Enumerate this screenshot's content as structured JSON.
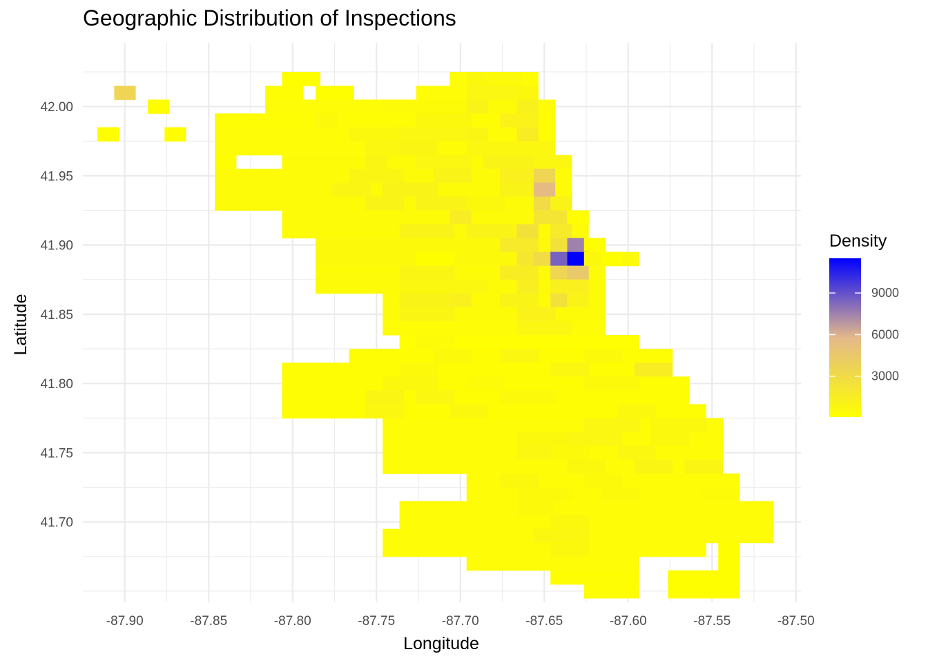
{
  "chart_data": {
    "type": "heatmap",
    "title": "Geographic Distribution of Inspections",
    "xlabel": "Longitude",
    "ylabel": "Latitude",
    "xlim": [
      -87.925,
      -87.497
    ],
    "ylim": [
      41.642,
      42.046
    ],
    "x_ticks": [
      -87.9,
      -87.85,
      -87.8,
      -87.75,
      -87.7,
      -87.65,
      -87.6,
      -87.55,
      -87.5
    ],
    "x_tick_labels": [
      "-87.90",
      "-87.85",
      "-87.80",
      "-87.75",
      "-87.70",
      "-87.65",
      "-87.60",
      "-87.55",
      "-87.50"
    ],
    "y_ticks": [
      41.7,
      41.75,
      41.8,
      41.85,
      41.9,
      41.95,
      42.0
    ],
    "y_tick_labels": [
      "41.70",
      "41.75",
      "41.80",
      "41.85",
      "41.90",
      "41.95",
      "42.00"
    ],
    "grid": true,
    "bin_width_lon": 0.0126,
    "bin_height_lat": 0.01,
    "legend": {
      "title": "Density",
      "placement": "right",
      "breaks": [
        3000,
        6000,
        9000
      ],
      "break_labels": [
        "3000",
        "6000",
        "9000"
      ],
      "min": 50,
      "max": 11500,
      "colors": [
        "#ffff00",
        "#e3b98a",
        "#0000ff"
      ]
    },
    "rows": [
      {
        "lat": 42.02,
        "spans": [
          [
            -87.8,
            -87.79,
            100
          ],
          [
            -87.7,
            -87.66,
            300
          ],
          [
            -87.69,
            -87.68,
            600
          ],
          [
            -87.68,
            -87.67,
            500
          ]
        ]
      },
      {
        "lat": 42.01,
        "spans": [
          [
            -87.9,
            -87.9,
            3500
          ],
          [
            -87.81,
            -87.8,
            200
          ],
          [
            -87.78,
            -87.77,
            100
          ],
          [
            -87.72,
            -87.66,
            300
          ],
          [
            -87.69,
            -87.67,
            800
          ],
          [
            -87.66,
            -87.66,
            600
          ]
        ]
      },
      {
        "lat": 42.0,
        "spans": [
          [
            -87.88,
            -87.88,
            100
          ],
          [
            -87.81,
            -87.75,
            300
          ],
          [
            -87.74,
            -87.65,
            400
          ],
          [
            -87.69,
            -87.69,
            1000
          ],
          [
            -87.66,
            -87.66,
            1200
          ]
        ]
      },
      {
        "lat": 41.99,
        "spans": [
          [
            -87.84,
            -87.65,
            250
          ],
          [
            -87.78,
            -87.78,
            500
          ],
          [
            -87.72,
            -87.7,
            600
          ],
          [
            -87.67,
            -87.66,
            1100
          ]
        ]
      },
      {
        "lat": 41.98,
        "spans": [
          [
            -87.91,
            -87.91,
            100
          ],
          [
            -87.87,
            -87.87,
            100
          ],
          [
            -87.84,
            -87.65,
            300
          ],
          [
            -87.76,
            -87.74,
            600
          ],
          [
            -87.73,
            -87.7,
            800
          ],
          [
            -87.69,
            -87.69,
            900
          ],
          [
            -87.66,
            -87.66,
            1500
          ]
        ]
      },
      {
        "lat": 41.97,
        "spans": [
          [
            -87.84,
            -87.65,
            300
          ],
          [
            -87.75,
            -87.74,
            700
          ],
          [
            -87.73,
            -87.72,
            900
          ],
          [
            -87.69,
            -87.65,
            700
          ]
        ]
      },
      {
        "lat": 41.96,
        "spans": [
          [
            -87.84,
            -87.84,
            100
          ],
          [
            -87.8,
            -87.64,
            400
          ],
          [
            -87.75,
            -87.75,
            900
          ],
          [
            -87.72,
            -87.7,
            800
          ],
          [
            -87.68,
            -87.66,
            1000
          ],
          [
            -87.65,
            -87.64,
            700
          ]
        ]
      },
      {
        "lat": 41.95,
        "spans": [
          [
            -87.84,
            -87.64,
            400
          ],
          [
            -87.76,
            -87.74,
            900
          ],
          [
            -87.71,
            -87.7,
            1000
          ],
          [
            -87.67,
            -87.66,
            1300
          ],
          [
            -87.65,
            -87.65,
            3500
          ]
        ]
      },
      {
        "lat": 41.94,
        "spans": [
          [
            -87.84,
            -87.64,
            400
          ],
          [
            -87.77,
            -87.76,
            900
          ],
          [
            -87.74,
            -87.72,
            1000
          ],
          [
            -87.67,
            -87.66,
            1000
          ],
          [
            -87.65,
            -87.65,
            5500
          ]
        ]
      },
      {
        "lat": 41.93,
        "spans": [
          [
            -87.84,
            -87.64,
            400
          ],
          [
            -87.75,
            -87.74,
            1000
          ],
          [
            -87.72,
            -87.7,
            1000
          ],
          [
            -87.69,
            -87.68,
            600
          ],
          [
            -87.65,
            -87.65,
            3000
          ],
          [
            -87.64,
            -87.64,
            1000
          ]
        ]
      },
      {
        "lat": 41.92,
        "spans": [
          [
            -87.8,
            -87.63,
            400
          ],
          [
            -87.7,
            -87.7,
            1500
          ],
          [
            -87.65,
            -87.64,
            2200
          ],
          [
            -87.63,
            -87.63,
            100
          ]
        ]
      },
      {
        "lat": 41.91,
        "spans": [
          [
            -87.8,
            -87.63,
            400
          ],
          [
            -87.73,
            -87.71,
            1000
          ],
          [
            -87.69,
            -87.67,
            1000
          ],
          [
            -87.66,
            -87.66,
            2500
          ],
          [
            -87.64,
            -87.64,
            1800
          ]
        ]
      },
      {
        "lat": 41.9,
        "spans": [
          [
            -87.78,
            -87.62,
            500
          ],
          [
            -87.67,
            -87.66,
            1800
          ],
          [
            -87.64,
            -87.64,
            2500
          ],
          [
            -87.63,
            -87.63,
            7500
          ],
          [
            -87.62,
            -87.62,
            100
          ]
        ]
      },
      {
        "lat": 41.89,
        "spans": [
          [
            -87.78,
            -87.6,
            500
          ],
          [
            -87.72,
            -87.71,
            100
          ],
          [
            -87.66,
            -87.66,
            2000
          ],
          [
            -87.65,
            -87.65,
            3000
          ],
          [
            -87.64,
            -87.64,
            8500
          ],
          [
            -87.63,
            -87.63,
            11500
          ],
          [
            -87.62,
            -87.62,
            600
          ],
          [
            -87.61,
            -87.61,
            100
          ]
        ]
      },
      {
        "lat": 41.88,
        "spans": [
          [
            -87.78,
            -87.62,
            400
          ],
          [
            -87.73,
            -87.71,
            900
          ],
          [
            -87.67,
            -87.66,
            1500
          ],
          [
            -87.64,
            -87.64,
            3500
          ],
          [
            -87.63,
            -87.63,
            4500
          ]
        ]
      },
      {
        "lat": 41.87,
        "spans": [
          [
            -87.78,
            -87.62,
            400
          ],
          [
            -87.73,
            -87.69,
            700
          ],
          [
            -87.66,
            -87.66,
            1400
          ],
          [
            -87.64,
            -87.63,
            1300
          ]
        ]
      },
      {
        "lat": 41.86,
        "spans": [
          [
            -87.74,
            -87.62,
            400
          ],
          [
            -87.73,
            -87.71,
            1000
          ],
          [
            -87.7,
            -87.7,
            1300
          ],
          [
            -87.67,
            -87.66,
            1000
          ],
          [
            -87.64,
            -87.64,
            2500
          ],
          [
            -87.63,
            -87.63,
            1000
          ]
        ]
      },
      {
        "lat": 41.85,
        "spans": [
          [
            -87.74,
            -87.62,
            400
          ],
          [
            -87.73,
            -87.71,
            900
          ],
          [
            -87.66,
            -87.65,
            1100
          ]
        ]
      },
      {
        "lat": 41.84,
        "spans": [
          [
            -87.74,
            -87.62,
            300
          ],
          [
            -87.66,
            -87.64,
            800
          ]
        ]
      },
      {
        "lat": 41.83,
        "spans": [
          [
            -87.73,
            -87.6,
            150
          ],
          [
            -87.72,
            -87.71,
            400
          ]
        ]
      },
      {
        "lat": 41.82,
        "spans": [
          [
            -87.76,
            -87.58,
            200
          ],
          [
            -87.71,
            -87.7,
            500
          ],
          [
            -87.67,
            -87.66,
            700
          ],
          [
            -87.62,
            -87.61,
            500
          ]
        ]
      },
      {
        "lat": 41.81,
        "spans": [
          [
            -87.8,
            -87.58,
            200
          ],
          [
            -87.73,
            -87.72,
            500
          ],
          [
            -87.64,
            -87.63,
            700
          ],
          [
            -87.59,
            -87.58,
            1500
          ]
        ]
      },
      {
        "lat": 41.8,
        "spans": [
          [
            -87.8,
            -87.57,
            200
          ],
          [
            -87.74,
            -87.72,
            600
          ],
          [
            -87.69,
            -87.68,
            400
          ],
          [
            -87.62,
            -87.6,
            500
          ]
        ]
      },
      {
        "lat": 41.79,
        "spans": [
          [
            -87.8,
            -87.57,
            200
          ],
          [
            -87.75,
            -87.74,
            900
          ],
          [
            -87.72,
            -87.71,
            700
          ],
          [
            -87.67,
            -87.65,
            500
          ]
        ]
      },
      {
        "lat": 41.78,
        "spans": [
          [
            -87.8,
            -87.56,
            200
          ],
          [
            -87.75,
            -87.74,
            700
          ],
          [
            -87.7,
            -87.69,
            600
          ],
          [
            -87.6,
            -87.59,
            600
          ]
        ]
      },
      {
        "lat": 41.77,
        "spans": [
          [
            -87.74,
            -87.55,
            300
          ],
          [
            -87.62,
            -87.6,
            800
          ],
          [
            -87.58,
            -87.56,
            600
          ]
        ]
      },
      {
        "lat": 41.76,
        "spans": [
          [
            -87.74,
            -87.55,
            300
          ],
          [
            -87.66,
            -87.64,
            600
          ],
          [
            -87.63,
            -87.61,
            800
          ],
          [
            -87.58,
            -87.57,
            600
          ]
        ]
      },
      {
        "lat": 41.75,
        "spans": [
          [
            -87.74,
            -87.55,
            300
          ],
          [
            -87.66,
            -87.65,
            700
          ],
          [
            -87.64,
            -87.63,
            500
          ],
          [
            -87.6,
            -87.59,
            700
          ]
        ]
      },
      {
        "lat": 41.74,
        "spans": [
          [
            -87.74,
            -87.55,
            300
          ],
          [
            -87.63,
            -87.62,
            600
          ],
          [
            -87.59,
            -87.58,
            900
          ],
          [
            -87.56,
            -87.55,
            900
          ]
        ]
      },
      {
        "lat": 41.73,
        "spans": [
          [
            -87.69,
            -87.54,
            300
          ],
          [
            -87.67,
            -87.66,
            600
          ],
          [
            -87.62,
            -87.61,
            500
          ],
          [
            -87.55,
            -87.55,
            300
          ]
        ]
      },
      {
        "lat": 41.72,
        "spans": [
          [
            -87.69,
            -87.54,
            300
          ],
          [
            -87.66,
            -87.64,
            500
          ],
          [
            -87.61,
            -87.6,
            500
          ],
          [
            -87.55,
            -87.54,
            400
          ]
        ]
      },
      {
        "lat": 41.71,
        "spans": [
          [
            -87.73,
            -87.52,
            300
          ],
          [
            -87.66,
            -87.65,
            500
          ]
        ]
      },
      {
        "lat": 41.7,
        "spans": [
          [
            -87.73,
            -87.52,
            300
          ],
          [
            -87.64,
            -87.63,
            600
          ]
        ]
      },
      {
        "lat": 41.69,
        "spans": [
          [
            -87.74,
            -87.52,
            300
          ],
          [
            -87.65,
            -87.63,
            700
          ]
        ]
      },
      {
        "lat": 41.68,
        "spans": [
          [
            -87.74,
            -87.56,
            300
          ],
          [
            -87.64,
            -87.63,
            600
          ],
          [
            -87.54,
            -87.54,
            100
          ]
        ]
      },
      {
        "lat": 41.67,
        "spans": [
          [
            -87.69,
            -87.6,
            300
          ],
          [
            -87.54,
            -87.54,
            100
          ]
        ]
      },
      {
        "lat": 41.66,
        "spans": [
          [
            -87.64,
            -87.6,
            200
          ],
          [
            -87.57,
            -87.54,
            100
          ]
        ]
      },
      {
        "lat": 41.65,
        "spans": [
          [
            -87.62,
            -87.6,
            200
          ],
          [
            -87.57,
            -87.54,
            100
          ]
        ]
      }
    ]
  }
}
